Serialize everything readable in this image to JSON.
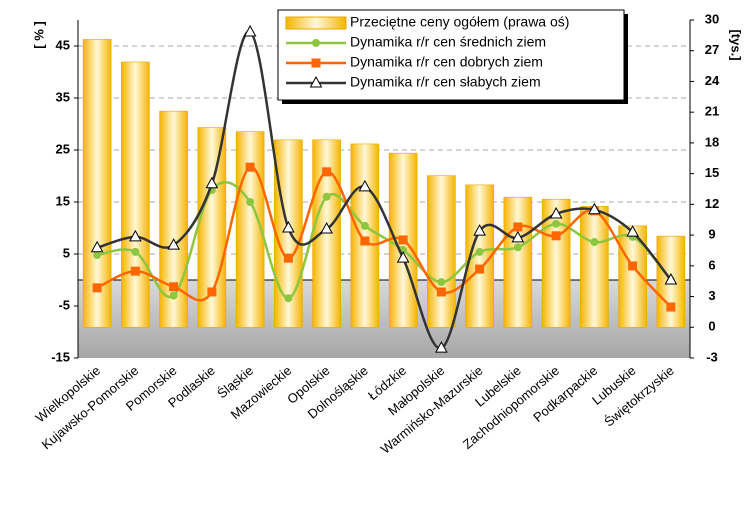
{
  "chart_data": {
    "type": "bar",
    "y_label": "[ % ]",
    "y2_label": "[tys.]",
    "categories": [
      "Wielkopolskie",
      "Kujawsko-Pomorskie",
      "Pomorskie",
      "Podlaskie",
      "Śląskie",
      "Mazowieckie",
      "Opolskie",
      "Dolnośląskie",
      "Łódzkie",
      "Małopolskie",
      "Warmińsko-Mazurskie",
      "Lubelskie",
      "Zachodniopomorskie",
      "Podkarpackie",
      "Lubuskie",
      "Świętokrzyskie"
    ],
    "series": [
      {
        "name": "Przeciętne ceny ogółem (prawa oś)",
        "type": "bar",
        "axis": "y2",
        "color": "#f5b400",
        "values": [
          28.1,
          25.9,
          21.1,
          19.5,
          19.1,
          18.3,
          18.3,
          17.9,
          17.0,
          14.8,
          13.9,
          12.7,
          12.5,
          11.8,
          9.9,
          8.9
        ]
      },
      {
        "name": "Dynamika r/r cen średnich ziem",
        "type": "line",
        "color": "#8dc63f",
        "values": [
          4.8,
          5.4,
          -3,
          17.3,
          15,
          -3.5,
          16,
          10.4,
          5.8,
          -0.4,
          5.4,
          6.3,
          10.8,
          7.3,
          8.3,
          0
        ]
      },
      {
        "name": "Dynamika r/r cen dobrych ziem",
        "type": "line",
        "color": "#ff6600",
        "values": [
          -1.5,
          1.7,
          -1.3,
          -2.3,
          21.7,
          4.2,
          20.8,
          7.5,
          7.7,
          -2.3,
          2.1,
          10.2,
          8.5,
          13.3,
          2.7,
          -5.2
        ]
      },
      {
        "name": "Dynamika r/r cen słabych ziem",
        "type": "line",
        "color": "#333333",
        "values": [
          6.2,
          8.3,
          6.7,
          18.5,
          47.7,
          10,
          9.8,
          17.9,
          4.2,
          -13.1,
          9.4,
          8.1,
          12.7,
          13.5,
          9.2,
          0
        ]
      }
    ],
    "ylim": [
      -15,
      50
    ],
    "yticks": [
      -15,
      -5,
      5,
      15,
      25,
      35,
      45
    ],
    "y2lim": [
      -3,
      30
    ],
    "y2ticks": [
      -3,
      0,
      3,
      6,
      9,
      12,
      15,
      18,
      21,
      24,
      27,
      30
    ],
    "grid": true
  }
}
